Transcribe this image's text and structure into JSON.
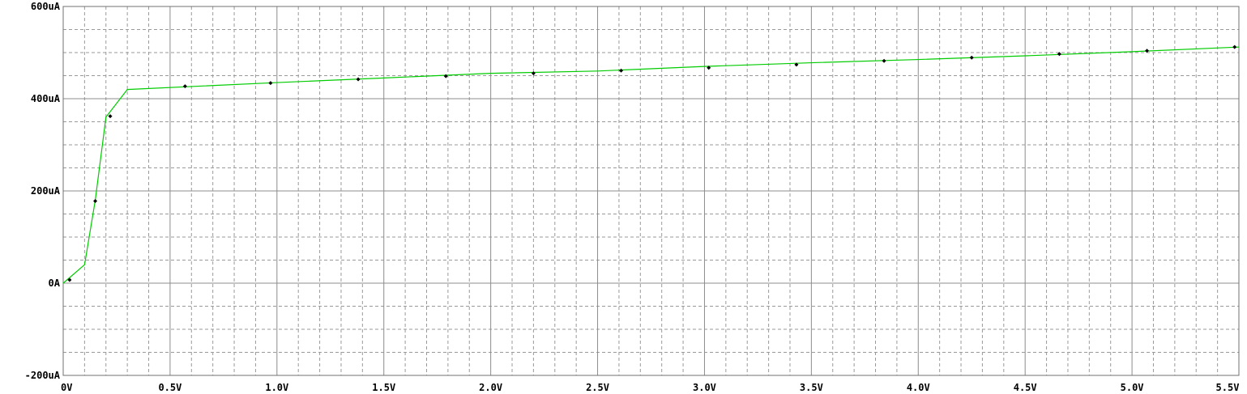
{
  "chart_data": {
    "type": "line",
    "title": "",
    "xlabel": "",
    "ylabel": "",
    "xlim": [
      0,
      5.5
    ],
    "ylim": [
      -200,
      600
    ],
    "x_tick_labels": [
      "0V",
      "0.5V",
      "1.0V",
      "1.5V",
      "2.0V",
      "2.5V",
      "3.0V",
      "3.5V",
      "4.0V",
      "4.5V",
      "5.0V",
      "5.5V"
    ],
    "x_ticks": [
      0,
      0.5,
      1.0,
      1.5,
      2.0,
      2.5,
      3.0,
      3.5,
      4.0,
      4.5,
      5.0,
      5.5
    ],
    "y_tick_labels": [
      "-200uA",
      "0A",
      "200uA",
      "400uA",
      "600uA"
    ],
    "y_ticks": [
      -200,
      0,
      200,
      400,
      600
    ],
    "grid": true,
    "line_color": "#00cc00",
    "marker_color": "#000000",
    "series": [
      {
        "x": [
          0,
          0.1,
          0.15,
          0.2,
          0.3,
          1.0,
          1.5,
          2.0,
          2.5,
          3.0,
          3.5,
          4.0,
          4.5,
          5.0,
          5.5
        ],
        "values": [
          0,
          40,
          180,
          360,
          420,
          435,
          445,
          455,
          460,
          470,
          478,
          485,
          493,
          502,
          512
        ]
      }
    ],
    "markers": {
      "x": [
        0.03,
        0.15,
        0.22,
        0.57,
        0.97,
        1.38,
        1.79,
        2.2,
        2.61,
        3.02,
        3.43,
        3.84,
        4.25,
        4.66,
        5.07,
        5.48
      ],
      "values": [
        7,
        178,
        362,
        427,
        434,
        442,
        449,
        455,
        461,
        467,
        474,
        482,
        489,
        497,
        504,
        512
      ]
    }
  }
}
